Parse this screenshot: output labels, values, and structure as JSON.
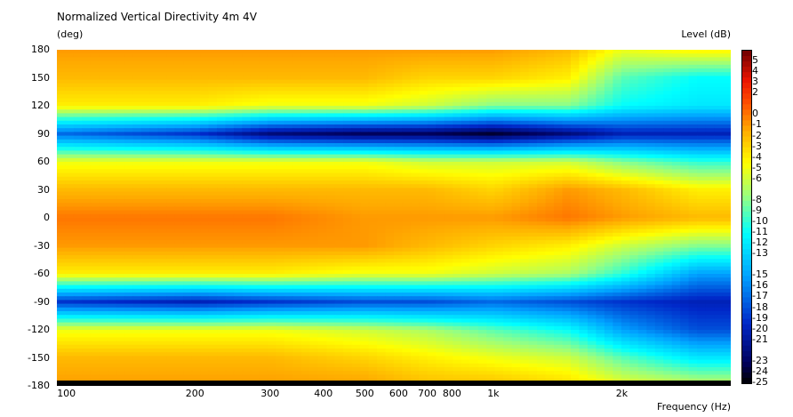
{
  "chart_data": {
    "type": "heatmap",
    "title": "Normalized Vertical Directivity 4m 4V",
    "ylabel": "(deg)",
    "xlabel": "Frequency  (Hz)",
    "colorbar_label": "Level  (dB)",
    "x_scale": "log",
    "xlim": [
      95,
      3600
    ],
    "ylim": [
      -180,
      180
    ],
    "x_ticks": [
      {
        "value": 100,
        "label": "100"
      },
      {
        "value": 200,
        "label": "200"
      },
      {
        "value": 300,
        "label": "300"
      },
      {
        "value": 400,
        "label": "400"
      },
      {
        "value": 500,
        "label": "500"
      },
      {
        "value": 600,
        "label": "600"
      },
      {
        "value": 700,
        "label": "700"
      },
      {
        "value": 800,
        "label": "800"
      },
      {
        "value": 1000,
        "label": "1k"
      },
      {
        "value": 2000,
        "label": "2k"
      }
    ],
    "y_ticks": [
      180,
      150,
      120,
      90,
      60,
      30,
      0,
      -30,
      -60,
      -90,
      -120,
      -150,
      -180
    ],
    "y_tick_labels": [
      "180",
      "150",
      "120",
      "90",
      "60",
      "30",
      "0",
      "-30",
      "-60",
      "-90",
      "-120",
      "-150",
      "-180"
    ],
    "colorbar_range": [
      -25,
      6
    ],
    "colorbar_ticks": [
      "5",
      "4",
      "3",
      "2",
      "0",
      "-1",
      "-2",
      "-3",
      "-4",
      "-5",
      "-6",
      "-8",
      "-9",
      "-10",
      "-11",
      "-12",
      "-13",
      "-15",
      "-16",
      "-17",
      "-18",
      "-19",
      "-20",
      "-21",
      "-23",
      "-24",
      "-25"
    ],
    "angles": [
      180,
      150,
      120,
      90,
      60,
      30,
      0,
      -30,
      -60,
      -90,
      -120,
      -150,
      -180
    ],
    "frequencies": [
      100,
      200,
      300,
      500,
      700,
      1000,
      1500,
      2000,
      3000
    ],
    "levels_db": [
      [
        -1,
        -1,
        -1,
        -1,
        -1,
        -1,
        -2,
        -5,
        -4
      ],
      [
        -2,
        -2,
        -2,
        -2,
        -3,
        -3,
        -4,
        -9,
        -11
      ],
      [
        -4,
        -4,
        -5,
        -5,
        -6,
        -8,
        -8,
        -11,
        -12
      ],
      [
        -17,
        -19,
        -22,
        -23,
        -23,
        -24,
        -22,
        -20,
        -20
      ],
      [
        -5,
        -5,
        -5,
        -5,
        -6,
        -6,
        -6,
        -8,
        -10
      ],
      [
        -2,
        -2,
        -2,
        -2,
        -2,
        -3,
        -1,
        -2,
        -4
      ],
      [
        0,
        0,
        0,
        -1,
        -1,
        -1,
        0,
        -1,
        -2
      ],
      [
        -1,
        -1,
        -1,
        -1,
        -2,
        -3,
        -4,
        -6,
        -8
      ],
      [
        -4,
        -4,
        -4,
        -5,
        -5,
        -6,
        -7,
        -10,
        -15
      ],
      [
        -19,
        -20,
        -19,
        -18,
        -18,
        -17,
        -18,
        -19,
        -20
      ],
      [
        -5,
        -5,
        -5,
        -6,
        -7,
        -9,
        -11,
        -15,
        -18
      ],
      [
        -2,
        -2,
        -2,
        -3,
        -4,
        -5,
        -6,
        -9,
        -12
      ],
      [
        -1,
        -1,
        -1,
        -1,
        -2,
        -2,
        -3,
        -5,
        -6
      ]
    ],
    "grid": false,
    "legend": "colorbar-right"
  }
}
